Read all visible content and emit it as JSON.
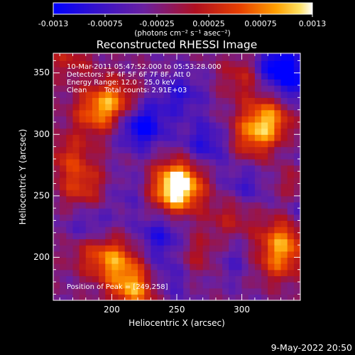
{
  "colorbar": {
    "ticks": [
      "-0.0013",
      "-0.00075",
      "-0.00025",
      "0.00025",
      "0.00075",
      "0.0013"
    ],
    "units": "(photons cm⁻² s⁻¹ asec⁻²)",
    "range": [
      -0.0013,
      0.0013
    ]
  },
  "colors": {
    "background": "#000000",
    "foreground": "#ffffff",
    "colormap": [
      "#0000ff",
      "#4010c0",
      "#6a20a0",
      "#b01020",
      "#e84000",
      "#ffa000",
      "#ffe060",
      "#ffffff"
    ]
  },
  "title": "Reconstructed RHESSI Image",
  "annotations": {
    "line1": "10-Mar-2011 05:47:52.000 to 05:53:28.000",
    "line2": "Detectors: 3F 4F 5F 6F 7F 8F, Att 0",
    "line3": "Energy Range: 12.0 - 25.0 keV",
    "line4_left": "Clean",
    "line4_right": "Total counts: 2.91E+03",
    "peak": "Position of Peak = [249,258]"
  },
  "footer": {
    "timestamp": "9-May-2022 20:50"
  },
  "chart_data": {
    "type": "heatmap",
    "title": "Reconstructed RHESSI Image",
    "xlabel": "Heliocentric X (arcsec)",
    "ylabel": "Heliocentric Y (arcsec)",
    "xlim": [
      155,
      345
    ],
    "ylim": [
      165,
      366
    ],
    "x_ticks": [
      200,
      250,
      300
    ],
    "y_ticks": [
      200,
      250,
      300,
      350
    ],
    "x_tick_labels": [
      "200",
      "250",
      "300"
    ],
    "y_tick_labels": [
      "200",
      "250",
      "300",
      "350"
    ],
    "colorbar_range": [
      -0.0013,
      0.0013
    ],
    "peak_position": [
      249,
      258
    ],
    "legend": "none",
    "grid": false,
    "sources": [
      {
        "x": 249,
        "y": 260,
        "value": 0.0013
      },
      {
        "x": 246,
        "y": 248,
        "value": 0.0009
      },
      {
        "x": 200,
        "y": 325,
        "value": 0.0009
      },
      {
        "x": 185,
        "y": 315,
        "value": 0.0008
      },
      {
        "x": 318,
        "y": 310,
        "value": 0.0011
      },
      {
        "x": 305,
        "y": 295,
        "value": 0.0008
      },
      {
        "x": 300,
        "y": 345,
        "value": 0.0006
      },
      {
        "x": 175,
        "y": 255,
        "value": 0.0007
      },
      {
        "x": 165,
        "y": 280,
        "value": 0.0006
      },
      {
        "x": 200,
        "y": 195,
        "value": 0.001
      },
      {
        "x": 180,
        "y": 205,
        "value": 0.0006
      },
      {
        "x": 265,
        "y": 200,
        "value": 0.0005
      },
      {
        "x": 330,
        "y": 215,
        "value": 0.0009
      },
      {
        "x": 325,
        "y": 195,
        "value": 0.0008
      },
      {
        "x": 290,
        "y": 232,
        "value": 0.0005
      },
      {
        "x": 340,
        "y": 260,
        "value": 0.0006
      },
      {
        "x": 215,
        "y": 172,
        "value": 0.0012
      },
      {
        "x": 165,
        "y": 360,
        "value": 0.0005
      },
      {
        "x": 220,
        "y": 305,
        "value": -0.0011
      },
      {
        "x": 270,
        "y": 290,
        "value": -0.0007
      },
      {
        "x": 250,
        "y": 330,
        "value": -0.0006
      },
      {
        "x": 325,
        "y": 352,
        "value": -0.0012
      },
      {
        "x": 345,
        "y": 335,
        "value": -0.0006
      },
      {
        "x": 180,
        "y": 220,
        "value": -0.0006
      },
      {
        "x": 235,
        "y": 215,
        "value": -0.0007
      },
      {
        "x": 240,
        "y": 180,
        "value": -0.0005
      },
      {
        "x": 300,
        "y": 255,
        "value": -0.0005
      },
      {
        "x": 345,
        "y": 275,
        "value": -0.0004
      },
      {
        "x": 345,
        "y": 235,
        "value": -0.0005
      },
      {
        "x": 290,
        "y": 195,
        "value": -0.0004
      },
      {
        "x": 210,
        "y": 250,
        "value": -0.0003
      }
    ]
  }
}
